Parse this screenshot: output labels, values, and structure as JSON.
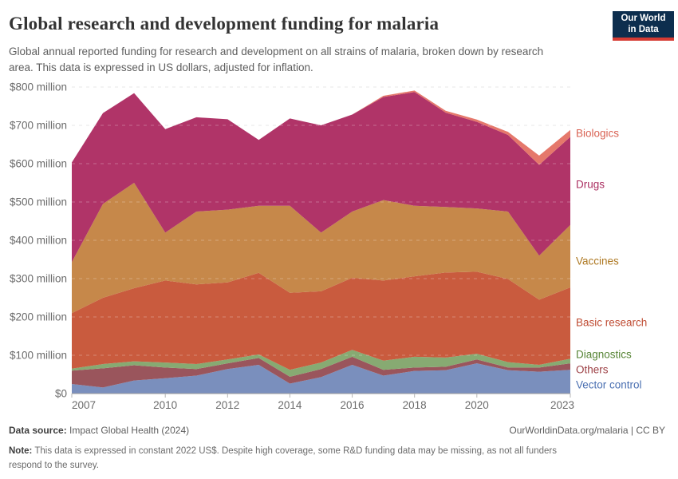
{
  "header": {
    "title": "Global research and development funding for malaria",
    "subtitle": "Global annual reported funding for research and development on all strains of malaria, broken down by research area. This data is expressed in US dollars, adjusted for inflation.",
    "logo": {
      "line1": "Our World",
      "line2": "in Data",
      "bg_color": "#0d2e4e",
      "stripe_color": "#d63b33"
    }
  },
  "chart_data": {
    "type": "area",
    "stacked": true,
    "title": "Global research and development funding for malaria",
    "xlabel": "",
    "ylabel": "US$ (million)",
    "x": [
      2007,
      2008,
      2009,
      2010,
      2011,
      2012,
      2013,
      2014,
      2015,
      2016,
      2017,
      2018,
      2019,
      2020,
      2021,
      2022,
      2023
    ],
    "x_ticks": [
      2007,
      2010,
      2012,
      2014,
      2016,
      2018,
      2020,
      2023
    ],
    "ylim": [
      0,
      800
    ],
    "y_ticks": [
      0,
      100,
      200,
      300,
      400,
      500,
      600,
      700,
      800
    ],
    "y_tick_labels": [
      "$0",
      "$100 million",
      "$200 million",
      "$300 million",
      "$400 million",
      "$500 million",
      "$600 million",
      "$700 million",
      "$800 million"
    ],
    "grid": true,
    "legend_position": "right-edge-labels",
    "series": [
      {
        "name": "Vector control",
        "color": "#7a8fbd",
        "label_color": "#4a6fb1",
        "label_y": 482,
        "values": [
          25,
          16,
          34,
          40,
          47,
          64,
          75,
          26,
          43,
          75,
          47,
          59,
          61,
          79,
          61,
          57,
          62
        ]
      },
      {
        "name": "Others",
        "color": "#9a555c",
        "label_color": "#9c3f44",
        "label_y": 463,
        "values": [
          35,
          50,
          40,
          28,
          17,
          15,
          18,
          18,
          21,
          21,
          15,
          9,
          9,
          10,
          7,
          11,
          17
        ]
      },
      {
        "name": "Diagnostics",
        "color": "#87aa72",
        "label_color": "#568435",
        "label_y": 444,
        "values": [
          5,
          11,
          10,
          13,
          13,
          10,
          9,
          18,
          17,
          18,
          24,
          28,
          24,
          15,
          14,
          7,
          12
        ]
      },
      {
        "name": "Basic research",
        "color": "#c95b3e",
        "label_color": "#bf4b32",
        "label_y": 404,
        "values": [
          145,
          173,
          191,
          214,
          208,
          201,
          213,
          201,
          186,
          188,
          209,
          210,
          222,
          214,
          217,
          170,
          186
        ]
      },
      {
        "name": "Vaccines",
        "color": "#c6884a",
        "label_color": "#ad7720",
        "label_y": 327,
        "values": [
          133,
          245,
          275,
          125,
          190,
          190,
          175,
          227,
          153,
          173,
          210,
          184,
          171,
          165,
          176,
          115,
          163
        ]
      },
      {
        "name": "Drugs",
        "color": "#b03468",
        "label_color": "#ab2f61",
        "label_y": 231,
        "values": [
          260,
          237,
          234,
          270,
          246,
          236,
          172,
          228,
          280,
          253,
          269,
          297,
          246,
          226,
          200,
          237,
          230
        ]
      },
      {
        "name": "Biologics",
        "color": "#e5786b",
        "label_color": "#d96253",
        "label_y": 167,
        "values": [
          0,
          0,
          0,
          0,
          0,
          0,
          0,
          0,
          0,
          0,
          3,
          4,
          5,
          6,
          8,
          24,
          18
        ]
      }
    ]
  },
  "footer": {
    "source_label": "Data source:",
    "source_value": " Impact Global Health (2024)",
    "credit": "OurWorldinData.org/malaria | CC BY",
    "note_label": "Note:",
    "note_text": " This data is expressed in constant 2022 US$. Despite high coverage, some R&D funding data may be missing, as not all funders respond to the survey."
  }
}
